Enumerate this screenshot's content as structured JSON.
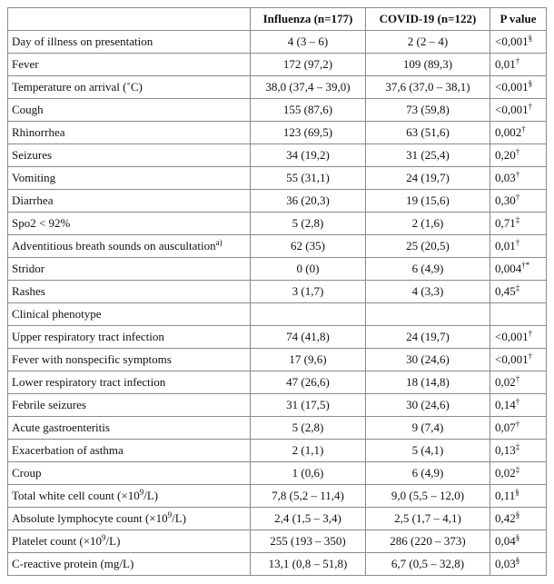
{
  "header": [
    "",
    "Influenza (n=177)",
    "COVID-19 (n=122)",
    "P value"
  ],
  "rows": [
    {
      "label": "Day of illness on presentation",
      "influenza": "4 (3 – 6)",
      "covid": "2 (2 – 4)",
      "p": "<0,001",
      "p_note": "§"
    },
    {
      "label": "Fever",
      "influenza": "172 (97,2)",
      "covid": "109 (89,3)",
      "p": "0,01",
      "p_note": "†"
    },
    {
      "label": "Temperature on arrival (˚C)",
      "influenza": "38,0 (37,4 – 39,0)",
      "covid": "37,6 (37,0 – 38,1)",
      "p": "<0,001",
      "p_note": "§"
    },
    {
      "label": "Cough",
      "influenza": "155 (87,6)",
      "covid": "73 (59,8)",
      "p": "<0,001",
      "p_note": "†"
    },
    {
      "label": "Rhinorrhea",
      "influenza": "123 (69,5)",
      "covid": "63 (51,6)",
      "p": "0,002",
      "p_note": "†"
    },
    {
      "label": "Seizures",
      "influenza": "34 (19,2)",
      "covid": "31 (25,4)",
      "p": "0,20",
      "p_note": "†"
    },
    {
      "label": "Vomiting",
      "influenza": "55 (31,1)",
      "covid": "24 (19,7)",
      "p": "0,03",
      "p_note": "†"
    },
    {
      "label": "Diarrhea",
      "influenza": "36 (20,3)",
      "covid": "19 (15,6)",
      "p": "0,30",
      "p_note": "†"
    },
    {
      "label": "Spo2 < 92%",
      "influenza": "5 (2,8)",
      "covid": "2 (1,6)",
      "p": "0,71",
      "p_note": "‡"
    },
    {
      "label": {
        "before": "Adventitious breath sounds on auscultation",
        "sup": "a)"
      },
      "influenza": "62 (35)",
      "covid": "25 (20,5)",
      "p": "0,01",
      "p_note": "†"
    },
    {
      "label": "Stridor",
      "influenza": "0 (0)",
      "covid": "6 (4,9)",
      "p": "0,004",
      "p_note": "†*"
    },
    {
      "label": "Rashes",
      "influenza": "3 (1,7)",
      "covid": "4 (3,3)",
      "p": "0,45",
      "p_note": "‡"
    },
    {
      "label": "Clinical phenotype"
    },
    {
      "label": "Upper respiratory tract infection",
      "influenza": "74 (41,8)",
      "covid": "24 (19,7)",
      "p": "<0,001",
      "p_note": "†"
    },
    {
      "label": "Fever with nonspecific symptoms",
      "influenza": "17 (9,6)",
      "covid": "30 (24,6)",
      "p": "<0,001",
      "p_note": "†"
    },
    {
      "label": "Lower respiratory tract infection",
      "influenza": "47 (26,6)",
      "covid": "18 (14,8)",
      "p": "0,02",
      "p_note": "†"
    },
    {
      "label": "Febrile seizures",
      "influenza": "31 (17,5)",
      "covid": "30 (24,6)",
      "p": "0,14",
      "p_note": "†"
    },
    {
      "label": "Acute gastroenteritis",
      "influenza": "5 (2,8)",
      "covid": "9 (7,4)",
      "p": "0,07",
      "p_note": "†"
    },
    {
      "label": "Exacerbation of asthma",
      "influenza": "2 (1,1)",
      "covid": "5 (4,1)",
      "p": "0,13",
      "p_note": "‡"
    },
    {
      "label": "Croup",
      "influenza": "1 (0,6)",
      "covid": "6 (4,9)",
      "p": "0,02",
      "p_note": "‡"
    },
    {
      "label": {
        "before": "Total white cell count (×10",
        "sup": "9",
        "after": "/L)"
      },
      "influenza": "7,8 (5,2 – 11,4)",
      "covid": "9,0 (5,5 – 12,0)",
      "p": "0,11",
      "p_note": "§"
    },
    {
      "label": {
        "before": "Absolute lymphocyte count (×10",
        "sup": "9",
        "after": "/L)"
      },
      "influenza": "2,4 (1,5 – 3,4)",
      "covid": "2,5 (1,7 – 4,1)",
      "p": "0,42",
      "p_note": "§"
    },
    {
      "label": {
        "before": "Platelet count (×10",
        "sup": "9",
        "after": "/L)"
      },
      "influenza": "255 (193 – 350)",
      "covid": "286 (220 – 373)",
      "p": "0,04",
      "p_note": "§"
    },
    {
      "label": "C-reactive protein (mg/L)",
      "influenza": "13,1 (0,8 – 51,8)",
      "covid": "6,7 (0,5 – 32,8)",
      "p": "0,03",
      "p_note": "§"
    }
  ]
}
